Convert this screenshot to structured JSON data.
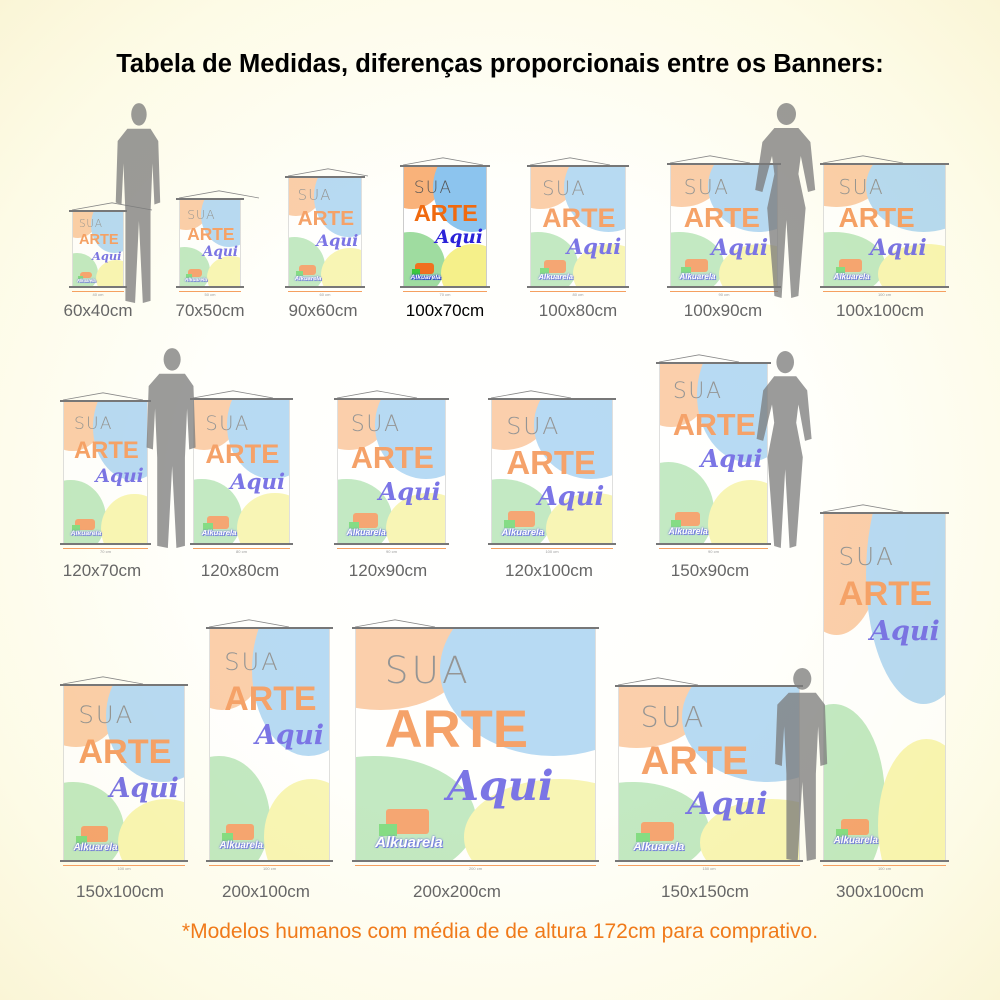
{
  "title": "Tabela de Medidas, diferenças proporcionais entre os Banners:",
  "footer": "*Modelos humanos com média de de altura 172cm para comprativo.",
  "art": {
    "line1": "SUA",
    "line2": "ARTE",
    "line3": "Aqui",
    "brand": "Alkuarela"
  },
  "colors": {
    "orange": "#f9b27a",
    "blue": "#8cc4ee",
    "green": "#9fdca0",
    "yellow": "#f5f08a",
    "arte": "#f06a10",
    "aqui": "#2b22d8",
    "footer": "#f07a1a"
  },
  "banners": [
    {
      "label": "60x40cm",
      "width_cm": "40 cm",
      "highlighted": false
    },
    {
      "label": "70x50cm",
      "width_cm": "50 cm",
      "highlighted": false
    },
    {
      "label": "90x60cm",
      "width_cm": "60 cm",
      "highlighted": false
    },
    {
      "label": "100x70cm",
      "width_cm": "70 cm",
      "highlighted": true
    },
    {
      "label": "100x80cm",
      "width_cm": "80 cm",
      "highlighted": false
    },
    {
      "label": "100x90cm",
      "width_cm": "90 cm",
      "highlighted": false
    },
    {
      "label": "100x100cm",
      "width_cm": "100 cm",
      "highlighted": false
    },
    {
      "label": "120x70cm",
      "width_cm": "70 cm",
      "highlighted": false
    },
    {
      "label": "120x80cm",
      "width_cm": "80 cm",
      "highlighted": false
    },
    {
      "label": "120x90cm",
      "width_cm": "90 cm",
      "highlighted": false
    },
    {
      "label": "120x100cm",
      "width_cm": "100 cm",
      "highlighted": false
    },
    {
      "label": "150x90cm",
      "width_cm": "90 cm",
      "highlighted": false
    },
    {
      "label": "150x100cm",
      "width_cm": "100 cm",
      "highlighted": false
    },
    {
      "label": "200x100cm",
      "width_cm": "100 cm",
      "highlighted": false
    },
    {
      "label": "200x200cm",
      "width_cm": "200 cm",
      "highlighted": false
    },
    {
      "label": "150x150cm",
      "width_cm": "150 cm",
      "highlighted": false
    },
    {
      "label": "300x100cm",
      "width_cm": "100 cm",
      "highlighted": false
    }
  ],
  "people": [
    {
      "type": "man"
    },
    {
      "type": "woman"
    },
    {
      "type": "man"
    },
    {
      "type": "woman"
    },
    {
      "type": "man"
    }
  ]
}
